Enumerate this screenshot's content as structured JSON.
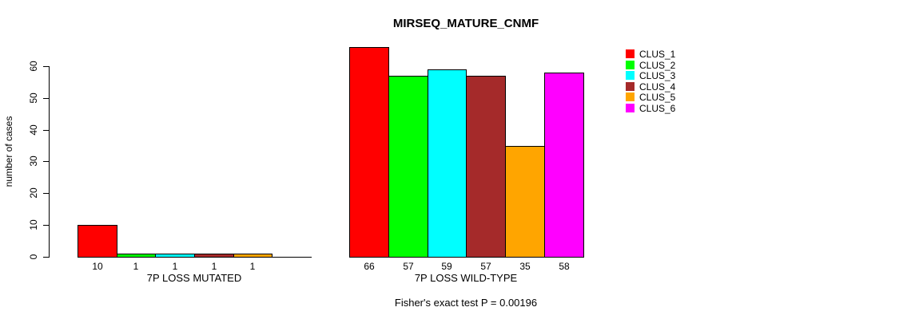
{
  "chart_data": {
    "type": "bar",
    "title": "MIRSEQ_MATURE_CNMF",
    "ylabel": "number of cases",
    "xlabel": "",
    "ylim": [
      0,
      66
    ],
    "yticks": [
      0,
      10,
      20,
      30,
      40,
      50,
      60
    ],
    "grid": false,
    "legend_position": "right-inside",
    "series_names": [
      "CLUS_1",
      "CLUS_2",
      "CLUS_3",
      "CLUS_4",
      "CLUS_5",
      "CLUS_6"
    ],
    "colors": [
      "#FF0000",
      "#00FF00",
      "#00FFFF",
      "#A52A2A",
      "#FFA500",
      "#FF00FF"
    ],
    "groups": [
      {
        "label": "7P LOSS MUTATED",
        "values": [
          10,
          1,
          1,
          1,
          1,
          0
        ],
        "bar_labels": [
          "10",
          "1",
          "1",
          "1",
          "1",
          ""
        ]
      },
      {
        "label": "7P LOSS WILD-TYPE",
        "values": [
          66,
          57,
          59,
          57,
          35,
          58
        ],
        "bar_labels": [
          "66",
          "57",
          "59",
          "57",
          "35",
          "58"
        ]
      }
    ],
    "annotation": "Fisher's exact test P = 0.00196"
  }
}
